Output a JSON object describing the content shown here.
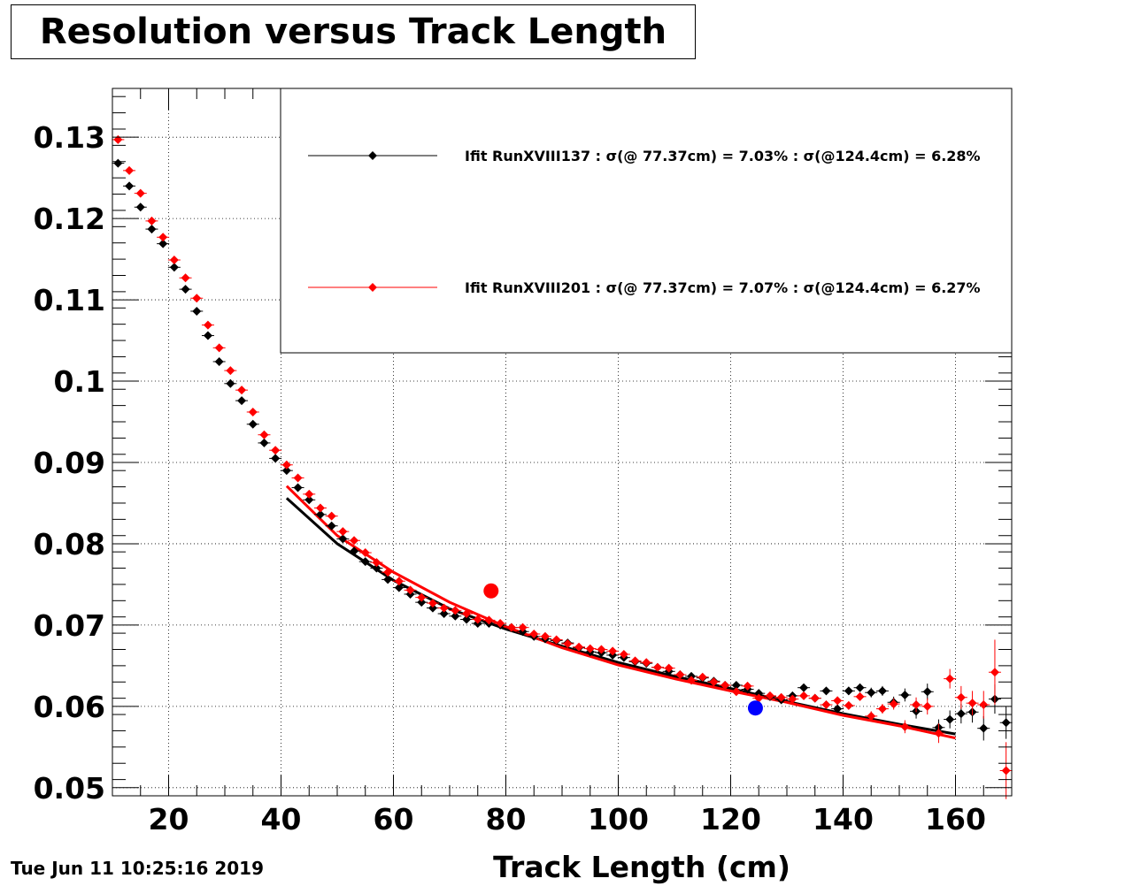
{
  "title": "Resolution versus Track Length",
  "timestamp": "Tue Jun 11 10:25:16 2019",
  "chart_data": {
    "type": "scatter",
    "xlabel": "Track Length (cm)",
    "ylabel": "",
    "xlim": [
      10,
      170
    ],
    "ylim": [
      0.049,
      0.136
    ],
    "x_ticks": [
      20,
      40,
      60,
      80,
      100,
      120,
      140,
      160
    ],
    "y_ticks": [
      0.05,
      0.06,
      0.07,
      0.08,
      0.09,
      0.1,
      0.11,
      0.12,
      0.13
    ],
    "x_tick_labels": [
      "20",
      "40",
      "60",
      "80",
      "100",
      "120",
      "140",
      "160"
    ],
    "y_tick_labels": [
      "0.05",
      "0.06",
      "0.07",
      "0.08",
      "0.09",
      "0.1",
      "0.11",
      "0.12",
      "0.13"
    ],
    "grid": true,
    "legend_position": "top-right",
    "series": [
      {
        "name": "Ifit RunXVIII137 : σ(@ 77.37cm) =  7.03% : σ(@124.4cm) =  6.28%",
        "color": "#000000",
        "x": [
          11,
          13,
          15,
          17,
          19,
          21,
          23,
          25,
          27,
          29,
          31,
          33,
          35,
          37,
          39,
          41,
          43,
          45,
          47,
          49,
          51,
          53,
          55,
          57,
          59,
          61,
          63,
          65,
          67,
          69,
          71,
          73,
          75,
          77,
          79,
          81,
          83,
          85,
          87,
          89,
          91,
          93,
          95,
          97,
          99,
          101,
          103,
          105,
          107,
          109,
          111,
          113,
          115,
          117,
          119,
          121,
          123,
          125,
          127,
          129,
          131,
          133,
          135,
          137,
          139,
          141,
          143,
          145,
          147,
          149,
          151,
          153,
          155,
          157,
          159,
          161,
          163,
          165,
          167,
          169
        ],
        "y": [
          0.1268,
          0.124,
          0.1214,
          0.1187,
          0.1169,
          0.114,
          0.1113,
          0.1086,
          0.1056,
          0.1024,
          0.0997,
          0.0976,
          0.0947,
          0.0924,
          0.0905,
          0.089,
          0.0869,
          0.0854,
          0.0836,
          0.0822,
          0.0806,
          0.0791,
          0.0778,
          0.077,
          0.0756,
          0.0746,
          0.0738,
          0.0728,
          0.0721,
          0.0714,
          0.0711,
          0.0707,
          0.0702,
          0.0702,
          0.07,
          0.0697,
          0.0692,
          0.0686,
          0.0683,
          0.0681,
          0.0678,
          0.0672,
          0.0667,
          0.0666,
          0.0663,
          0.066,
          0.0655,
          0.0653,
          0.0648,
          0.0643,
          0.0639,
          0.0637,
          0.0635,
          0.0631,
          0.0626,
          0.0626,
          0.0621,
          0.0616,
          0.0612,
          0.0608,
          0.0613,
          0.0623,
          0.061,
          0.0619,
          0.0597,
          0.0619,
          0.0623,
          0.0617,
          0.0619,
          0.0605,
          0.0614,
          0.0594,
          0.0618,
          0.0574,
          0.0584,
          0.0591,
          0.0593,
          0.0573,
          0.0609,
          0.058
        ],
        "yerr": [
          0.0002,
          0.0002,
          0.0002,
          0.0002,
          0.0002,
          0.0002,
          0.0002,
          0.0002,
          0.0002,
          0.0002,
          0.0002,
          0.0002,
          0.0002,
          0.0002,
          0.0002,
          0.0002,
          0.0002,
          0.0002,
          0.0002,
          0.0002,
          0.0002,
          0.0002,
          0.0002,
          0.0002,
          0.0002,
          0.0002,
          0.0002,
          0.0002,
          0.0002,
          0.0002,
          0.0002,
          0.0002,
          0.0002,
          0.0002,
          0.0002,
          0.0002,
          0.0002,
          0.0002,
          0.0002,
          0.0002,
          0.0002,
          0.0002,
          0.0002,
          0.0002,
          0.0002,
          0.0002,
          0.0002,
          0.0002,
          0.0002,
          0.0002,
          0.0002,
          0.0003,
          0.0003,
          0.0003,
          0.0003,
          0.0003,
          0.0003,
          0.0003,
          0.0003,
          0.0003,
          0.0004,
          0.0004,
          0.0004,
          0.0004,
          0.0005,
          0.0005,
          0.0005,
          0.0006,
          0.0006,
          0.0007,
          0.0008,
          0.0009,
          0.001,
          0.001,
          0.0011,
          0.0012,
          0.0013,
          0.0015,
          0.0018,
          0.002
        ],
        "fit_x": [
          41,
          50,
          60,
          70,
          80,
          90,
          100,
          110,
          120,
          130,
          140,
          150,
          160
        ],
        "fit_y": [
          0.0856,
          0.08,
          0.0755,
          0.072,
          0.0695,
          0.0674,
          0.0654,
          0.0637,
          0.0622,
          0.0606,
          0.0591,
          0.0578,
          0.0566
        ]
      },
      {
        "name": "Ifit RunXVIII201 : σ(@ 77.37cm) =  7.07% : σ(@124.4cm) =  6.27%",
        "color": "#ff0000",
        "x": [
          11,
          13,
          15,
          17,
          19,
          21,
          23,
          25,
          27,
          29,
          31,
          33,
          35,
          37,
          39,
          41,
          43,
          45,
          47,
          49,
          51,
          53,
          55,
          57,
          59,
          61,
          63,
          65,
          67,
          69,
          71,
          73,
          75,
          77,
          79,
          81,
          83,
          85,
          87,
          89,
          91,
          93,
          95,
          97,
          99,
          101,
          103,
          105,
          107,
          109,
          111,
          113,
          115,
          117,
          119,
          121,
          123,
          125,
          127,
          129,
          131,
          133,
          135,
          137,
          139,
          141,
          143,
          145,
          147,
          149,
          151,
          153,
          155,
          157,
          159,
          161,
          163,
          165,
          167,
          169
        ],
        "y": [
          0.1297,
          0.1259,
          0.1231,
          0.1197,
          0.1177,
          0.1149,
          0.1127,
          0.1102,
          0.1069,
          0.1041,
          0.1013,
          0.0989,
          0.0962,
          0.0934,
          0.0915,
          0.0897,
          0.0881,
          0.0861,
          0.0844,
          0.0834,
          0.0815,
          0.0804,
          0.0789,
          0.0777,
          0.0765,
          0.0754,
          0.0743,
          0.0734,
          0.0727,
          0.0721,
          0.0718,
          0.0714,
          0.0707,
          0.0706,
          0.0702,
          0.0697,
          0.0697,
          0.0689,
          0.0686,
          0.0682,
          0.0677,
          0.0673,
          0.0671,
          0.067,
          0.0668,
          0.0664,
          0.0656,
          0.0654,
          0.0648,
          0.0647,
          0.0639,
          0.0632,
          0.0636,
          0.063,
          0.0626,
          0.0618,
          0.0625,
          0.061,
          0.0613,
          0.0611,
          0.0609,
          0.0613,
          0.061,
          0.0602,
          0.0607,
          0.0601,
          0.0612,
          0.0588,
          0.0597,
          0.0603,
          0.0575,
          0.0602,
          0.06,
          0.0567,
          0.0634,
          0.0611,
          0.0604,
          0.0602,
          0.0642,
          0.0521
        ],
        "yerr": [
          0.0002,
          0.0002,
          0.0002,
          0.0002,
          0.0002,
          0.0002,
          0.0002,
          0.0002,
          0.0002,
          0.0002,
          0.0002,
          0.0002,
          0.0002,
          0.0002,
          0.0002,
          0.0002,
          0.0002,
          0.0002,
          0.0002,
          0.0002,
          0.0002,
          0.0002,
          0.0002,
          0.0002,
          0.0002,
          0.0002,
          0.0002,
          0.0002,
          0.0002,
          0.0002,
          0.0002,
          0.0002,
          0.0002,
          0.0002,
          0.0002,
          0.0002,
          0.0002,
          0.0002,
          0.0002,
          0.0002,
          0.0002,
          0.0002,
          0.0002,
          0.0002,
          0.0002,
          0.0002,
          0.0002,
          0.0002,
          0.0002,
          0.0002,
          0.0002,
          0.0003,
          0.0003,
          0.0003,
          0.0003,
          0.0003,
          0.0003,
          0.0003,
          0.0003,
          0.0003,
          0.0004,
          0.0004,
          0.0004,
          0.0004,
          0.0005,
          0.0005,
          0.0005,
          0.0006,
          0.0006,
          0.0007,
          0.0008,
          0.0009,
          0.001,
          0.0012,
          0.0012,
          0.0014,
          0.0015,
          0.0017,
          0.004,
          0.0035
        ],
        "fit_x": [
          41,
          50,
          60,
          70,
          80,
          90,
          100,
          110,
          120,
          130,
          140,
          150,
          160
        ],
        "fit_y": [
          0.0871,
          0.081,
          0.0765,
          0.0728,
          0.0698,
          0.0672,
          0.0651,
          0.0634,
          0.0619,
          0.0605,
          0.0589,
          0.0576,
          0.0561
        ]
      }
    ],
    "markers": [
      {
        "x": 77.37,
        "y": 0.0742,
        "color": "#ff0000"
      },
      {
        "x": 124.4,
        "y": 0.0598,
        "color": "#0000ff"
      }
    ]
  }
}
